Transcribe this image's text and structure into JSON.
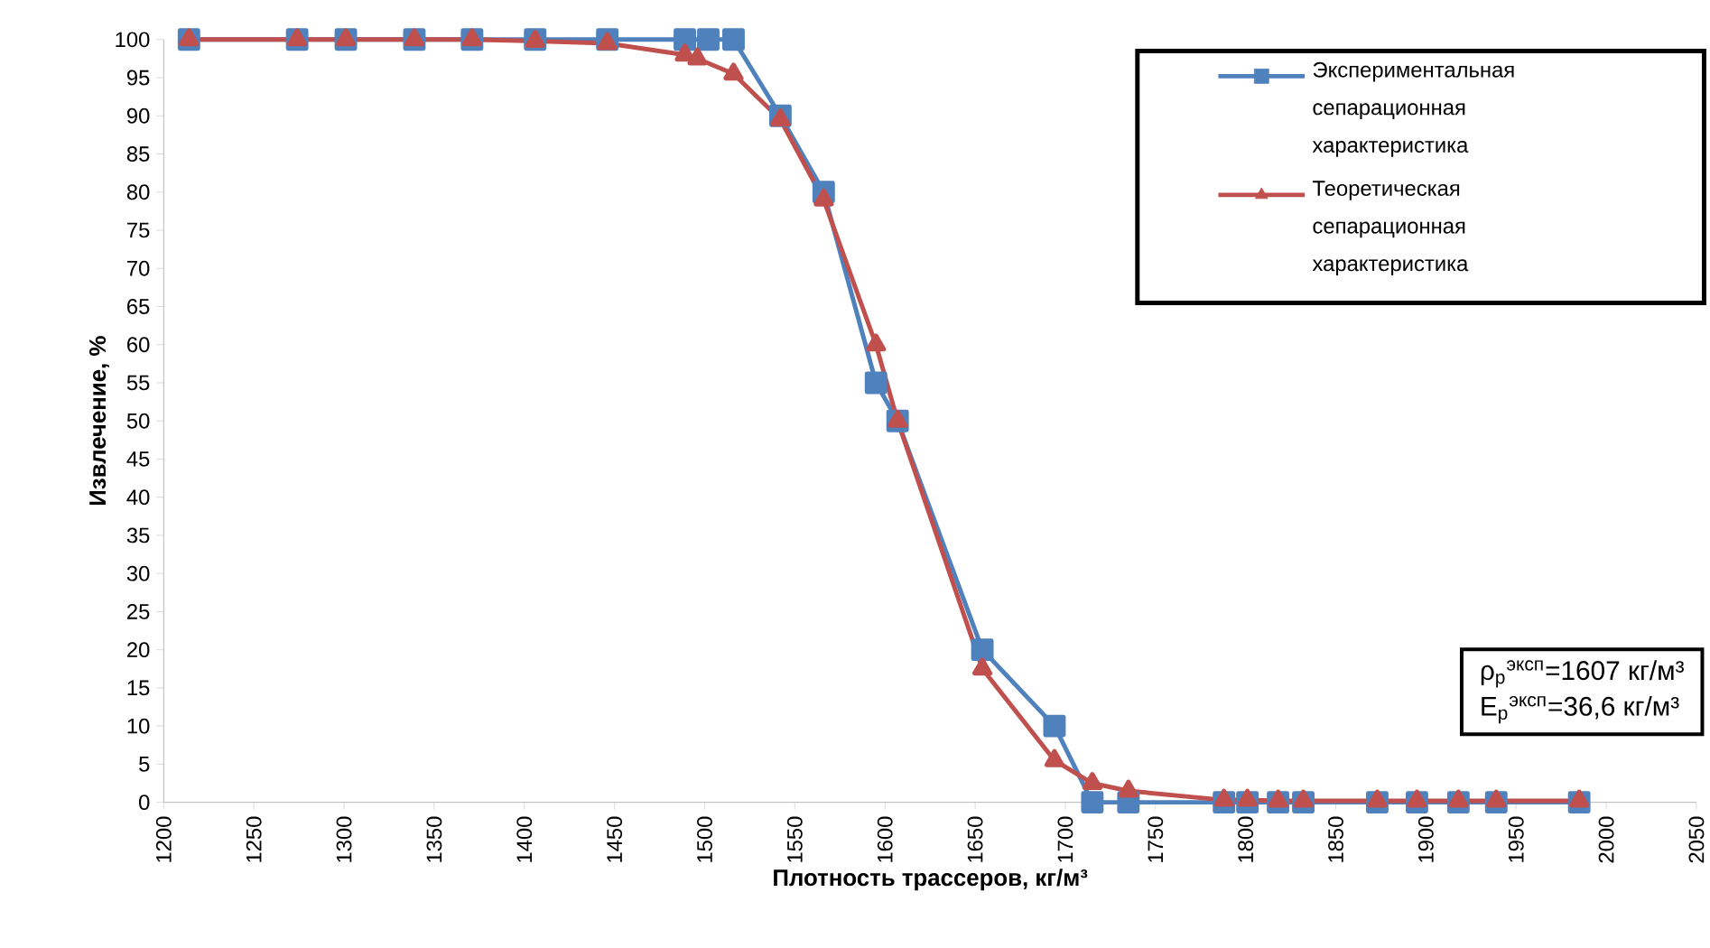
{
  "chart_data": {
    "type": "line",
    "xlabel": "Плотность трассеров, кг/м³",
    "ylabel": "Извлечение, %",
    "xlim": [
      1200,
      2050
    ],
    "xticks": [
      1200,
      1250,
      1300,
      1350,
      1400,
      1450,
      1500,
      1550,
      1600,
      1650,
      1700,
      1750,
      1800,
      1850,
      1900,
      1950,
      2000,
      2050
    ],
    "ylim": [
      0,
      100
    ],
    "yticks": [
      0,
      5,
      10,
      15,
      20,
      25,
      30,
      35,
      40,
      45,
      50,
      55,
      60,
      65,
      70,
      75,
      80,
      85,
      90,
      95,
      100
    ],
    "grid": false,
    "legend": "top right",
    "annotations": [
      "ρ$_{р}$$^{эксп}$=1607 кг/м³",
      "E$_{р}$$^{эксп}$=36,6 кг/м³"
    ],
    "series": [
      {
        "name": "Экспериментальная сепарационная характеристика",
        "color": "#4f81bd",
        "marker": "square",
        "x": [
          1214,
          1274,
          1301,
          1339,
          1371,
          1406,
          1446,
          1489,
          1502,
          1516,
          1542,
          1566,
          1595,
          1607,
          1654,
          1694,
          1715,
          1735,
          1788,
          1801,
          1818,
          1832,
          1873,
          1895,
          1918,
          1939,
          1985
        ],
        "values": [
          100,
          100,
          100,
          100,
          100,
          100,
          100,
          100,
          100,
          100,
          90,
          80,
          55,
          50,
          20,
          10,
          0,
          0,
          0,
          0,
          0,
          0,
          0,
          0,
          0,
          0,
          0
        ]
      },
      {
        "name": "Теоретическая сепарационная характеристика",
        "color": "#c0504d",
        "marker": "triangle",
        "x": [
          1214,
          1274,
          1301,
          1339,
          1371,
          1406,
          1446,
          1489,
          1496,
          1516,
          1542,
          1566,
          1595,
          1607,
          1654,
          1694,
          1715,
          1735,
          1788,
          1801,
          1818,
          1832,
          1873,
          1895,
          1918,
          1939,
          1985
        ],
        "values": [
          100,
          100,
          100,
          100,
          100,
          99.8,
          99.5,
          98,
          97.5,
          95.5,
          89.5,
          79,
          60,
          50,
          17.5,
          5.5,
          2.5,
          1.5,
          0.3,
          0.3,
          0.2,
          0.2,
          0.2,
          0.2,
          0.2,
          0.2,
          0.2
        ]
      }
    ]
  }
}
